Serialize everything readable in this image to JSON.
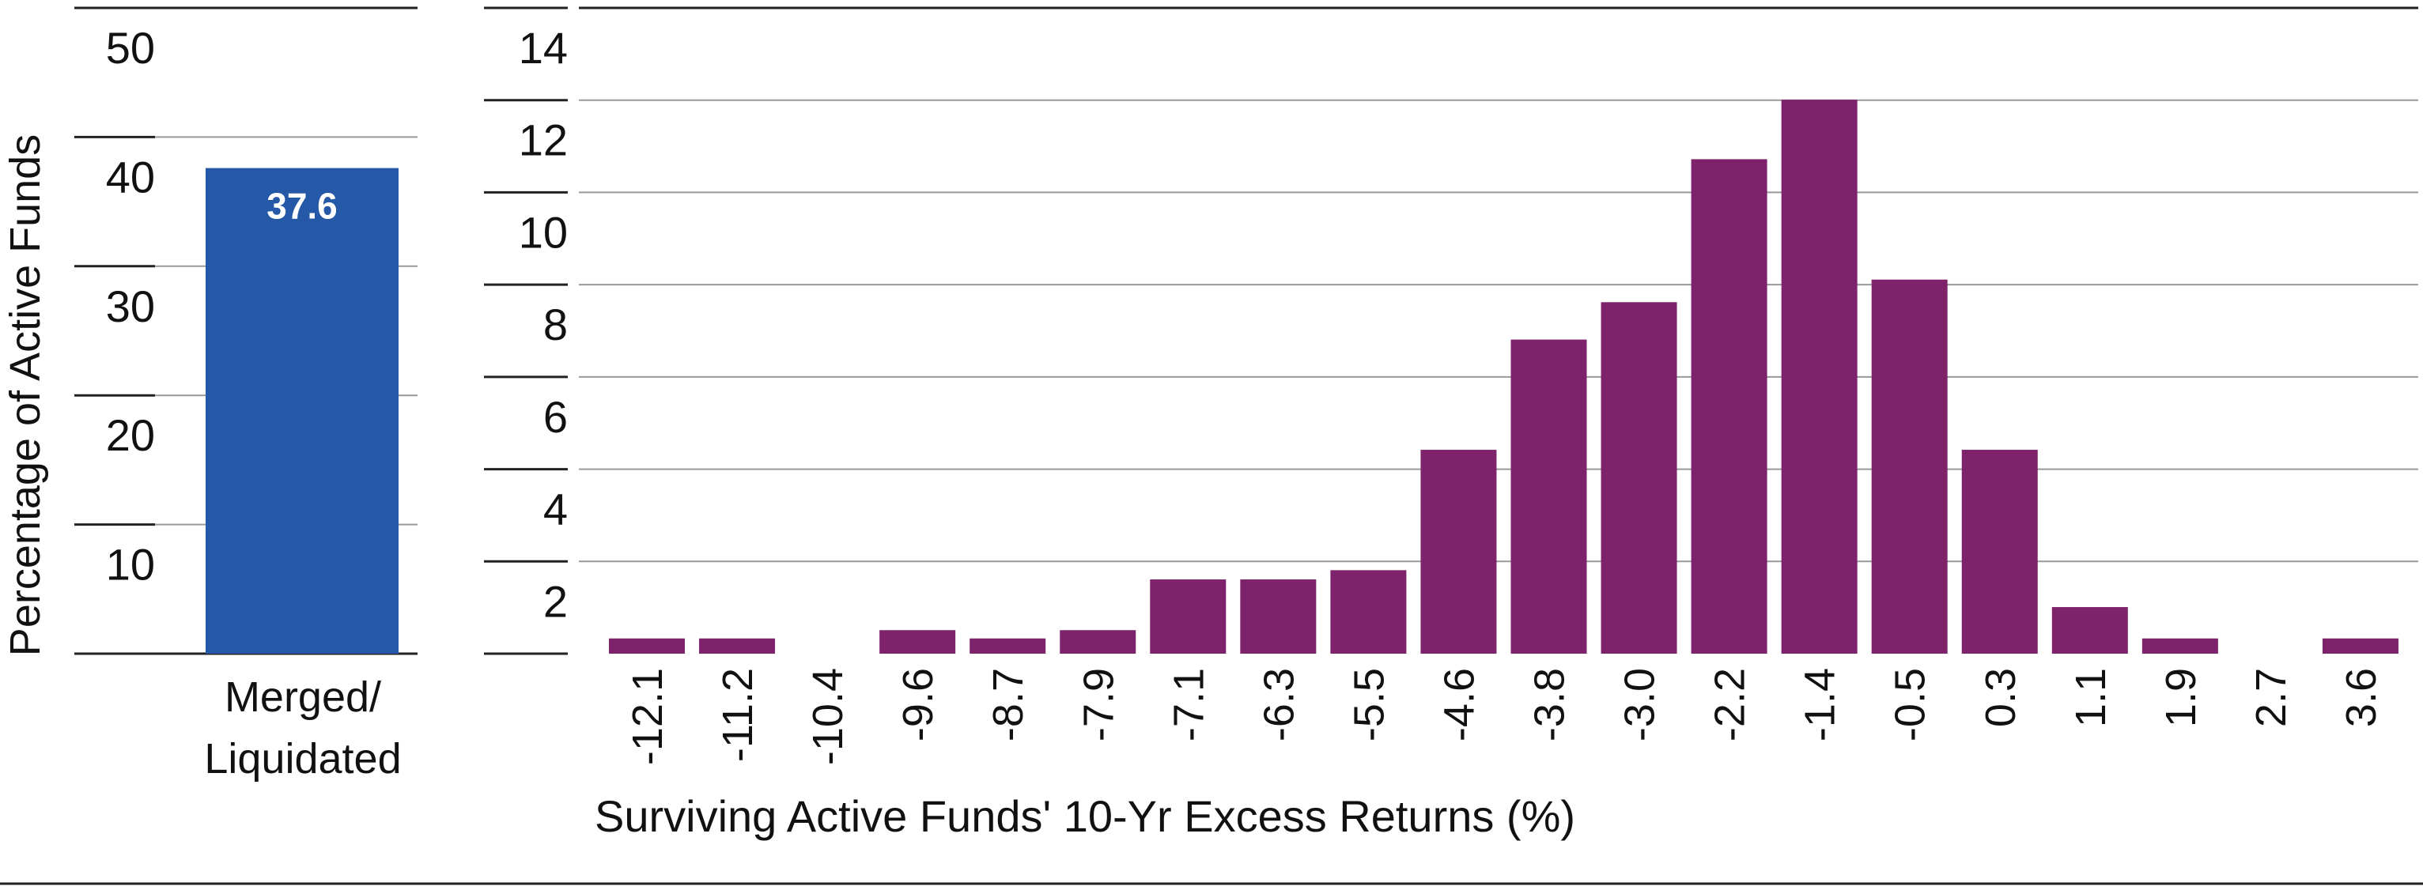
{
  "chart_data": [
    {
      "type": "bar",
      "categories": [
        "Merged/\nLiquidated"
      ],
      "category_lines": [
        "Merged/",
        "Liquidated"
      ],
      "values": [
        37.6
      ],
      "data_labels": [
        "37.6"
      ],
      "ylabel": "Percentage of Active Funds",
      "ylim": [
        0,
        50
      ],
      "yticks": [
        10,
        20,
        30,
        40,
        50
      ],
      "grid": true,
      "color": "#2559A7"
    },
    {
      "type": "bar",
      "categories": [
        "-12.1",
        "-11.2",
        "-10.4",
        "-9.6",
        "-8.7",
        "-7.9",
        "-7.1",
        "-6.3",
        "-5.5",
        "-4.6",
        "-3.8",
        "-3.0",
        "-2.2",
        "-1.4",
        "-0.5",
        "0.3",
        "1.1",
        "1.9",
        "2.7",
        "3.6"
      ],
      "values": [
        0.33,
        0.33,
        0,
        0.51,
        0.33,
        0.51,
        1.61,
        1.61,
        1.81,
        4.42,
        6.81,
        7.62,
        10.72,
        12.01,
        8.11,
        4.42,
        1.01,
        0.33,
        0,
        0.33
      ],
      "xlabel": "Surviving Active Funds' 10-Yr Excess Returns (%)",
      "ylim": [
        0,
        14
      ],
      "yticks": [
        2,
        4,
        6,
        8,
        10,
        12,
        14
      ],
      "grid": true,
      "color": "#7E226C"
    }
  ]
}
